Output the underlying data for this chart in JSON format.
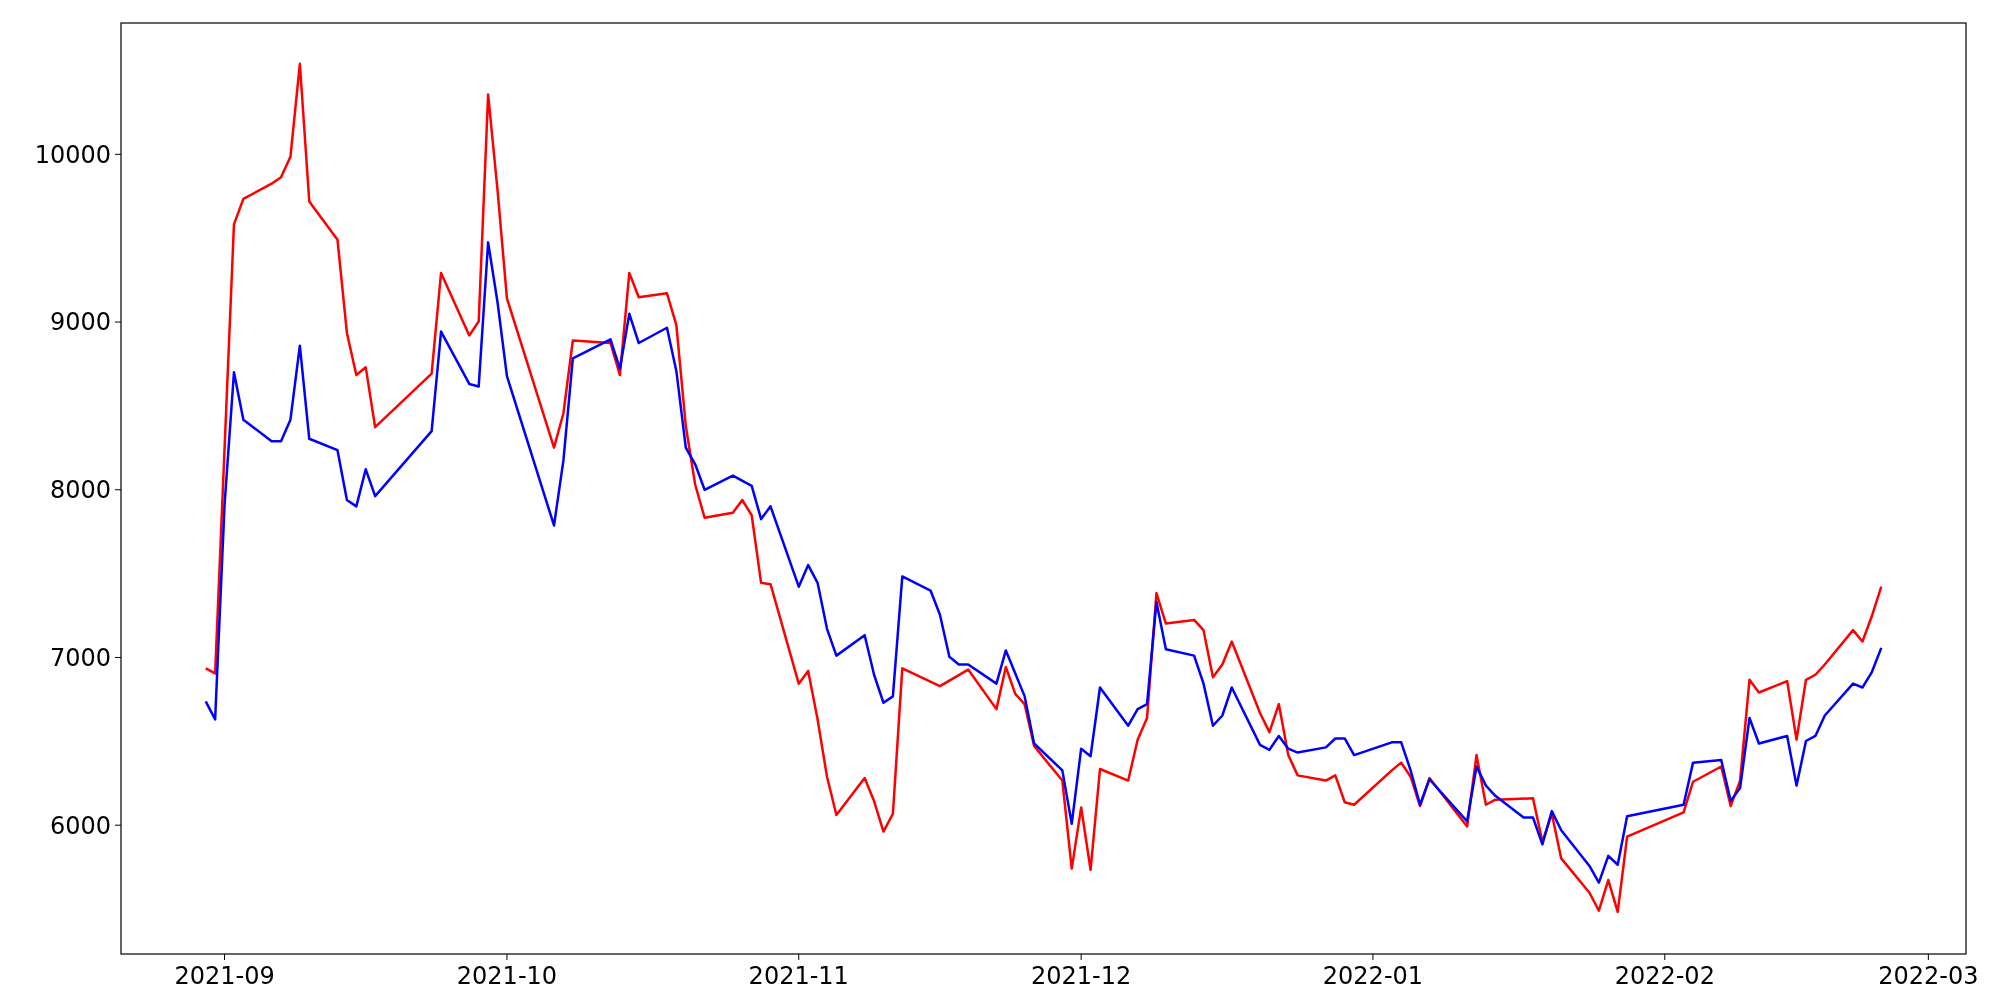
{
  "chart_data": {
    "type": "line",
    "xlim": [
      "2021-08-21",
      "2022-03-05"
    ],
    "ylim": [
      5232,
      10783
    ],
    "xticks": [
      "2021-09",
      "2021-10",
      "2021-11",
      "2021-12",
      "2022-01",
      "2022-02",
      "2022-03"
    ],
    "yticks": [
      6000,
      7000,
      8000,
      9000,
      10000
    ],
    "grid": false,
    "marker": "none",
    "line_style": "solid",
    "series": [
      {
        "color": "#ff0000",
        "x": [
          "2021-08-30",
          "2021-08-31",
          "2021-09-02",
          "2021-09-03",
          "2021-09-06",
          "2021-09-07",
          "2021-09-08",
          "2021-09-09",
          "2021-09-10",
          "2021-09-13",
          "2021-09-14",
          "2021-09-15",
          "2021-09-16",
          "2021-09-17",
          "2021-09-23",
          "2021-09-24",
          "2021-09-27",
          "2021-09-28",
          "2021-09-29",
          "2021-09-30",
          "2021-10-01",
          "2021-10-06",
          "2021-10-07",
          "2021-10-08",
          "2021-10-12",
          "2021-10-13",
          "2021-10-14",
          "2021-10-15",
          "2021-10-18",
          "2021-10-19",
          "2021-10-20",
          "2021-10-21",
          "2021-10-22",
          "2021-10-25",
          "2021-10-26",
          "2021-10-27",
          "2021-10-28",
          "2021-10-29",
          "2021-11-01",
          "2021-11-02",
          "2021-11-03",
          "2021-11-04",
          "2021-11-05",
          "2021-11-08",
          "2021-11-09",
          "2021-11-10",
          "2021-11-11",
          "2021-11-12",
          "2021-11-16",
          "2021-11-19",
          "2021-11-22",
          "2021-11-23",
          "2021-11-24",
          "2021-11-25",
          "2021-11-26",
          "2021-11-29",
          "2021-11-30",
          "2021-12-01",
          "2021-12-02",
          "2021-12-03",
          "2021-12-06",
          "2021-12-07",
          "2021-12-08",
          "2021-12-09",
          "2021-12-10",
          "2021-12-13",
          "2021-12-14",
          "2021-12-15",
          "2021-12-16",
          "2021-12-17",
          "2021-12-20",
          "2021-12-21",
          "2021-12-22",
          "2021-12-23",
          "2021-12-24",
          "2021-12-27",
          "2021-12-28",
          "2021-12-29",
          "2021-12-30",
          "2022-01-03",
          "2022-01-04",
          "2022-01-05",
          "2022-01-06",
          "2022-01-07",
          "2022-01-11",
          "2022-01-12",
          "2022-01-13",
          "2022-01-14",
          "2022-01-18",
          "2022-01-19",
          "2022-01-20",
          "2022-01-21",
          "2022-01-24",
          "2022-01-25",
          "2022-01-26",
          "2022-01-27",
          "2022-01-28",
          "2022-02-03",
          "2022-02-04",
          "2022-02-07",
          "2022-02-08",
          "2022-02-09",
          "2022-02-10",
          "2022-02-11",
          "2022-02-14",
          "2022-02-15",
          "2022-02-16",
          "2022-02-17",
          "2022-02-18",
          "2022-02-21",
          "2022-02-22",
          "2022-02-23",
          "2022-02-24"
        ],
        "values": [
          6935,
          6905,
          9582,
          9734,
          9825,
          9863,
          9985,
          10540,
          9719,
          9490,
          8935,
          8684,
          8730,
          8373,
          8692,
          9293,
          8920,
          9004,
          10357,
          9787,
          9141,
          8251,
          8456,
          8890,
          8875,
          8684,
          9293,
          9148,
          9171,
          8981,
          8380,
          8030,
          7833,
          7863,
          7939,
          7848,
          7445,
          7437,
          6844,
          6920,
          6631,
          6289,
          6061,
          6281,
          6144,
          5962,
          6068,
          6935,
          6829,
          6928,
          6692,
          6943,
          6783,
          6720,
          6472,
          6266,
          5741,
          6106,
          5734,
          6335,
          6266,
          6510,
          6639,
          7384,
          7202,
          7224,
          7163,
          6882,
          6958,
          7095,
          6669,
          6555,
          6722,
          6418,
          6297,
          6266,
          6297,
          6137,
          6122,
          6327,
          6373,
          6289,
          6114,
          6281,
          5992,
          6418,
          6122,
          6152,
          6160,
          5901,
          6068,
          5802,
          5597,
          5490,
          5673,
          5483,
          5932,
          6076,
          6259,
          6350,
          6114,
          6266,
          6867,
          6791,
          6859,
          6510,
          6867,
          6897,
          6958,
          7163,
          7095,
          7247,
          7422
        ]
      },
      {
        "color": "#0000ff",
        "x": [
          "2021-08-30",
          "2021-08-31",
          "2021-09-01",
          "2021-09-02",
          "2021-09-03",
          "2021-09-06",
          "2021-09-07",
          "2021-09-08",
          "2021-09-09",
          "2021-09-10",
          "2021-09-13",
          "2021-09-14",
          "2021-09-15",
          "2021-09-16",
          "2021-09-17",
          "2021-09-23",
          "2021-09-24",
          "2021-09-27",
          "2021-09-28",
          "2021-09-29",
          "2021-09-30",
          "2021-10-01",
          "2021-10-06",
          "2021-10-07",
          "2021-10-08",
          "2021-10-12",
          "2021-10-13",
          "2021-10-14",
          "2021-10-15",
          "2021-10-18",
          "2021-10-19",
          "2021-10-20",
          "2021-10-21",
          "2021-10-22",
          "2021-10-25",
          "2021-10-27",
          "2021-10-28",
          "2021-10-29",
          "2021-11-01",
          "2021-11-02",
          "2021-11-03",
          "2021-11-04",
          "2021-11-05",
          "2021-11-08",
          "2021-11-09",
          "2021-11-10",
          "2021-11-11",
          "2021-11-12",
          "2021-11-15",
          "2021-11-16",
          "2021-11-17",
          "2021-11-18",
          "2021-11-19",
          "2021-11-22",
          "2021-11-23",
          "2021-11-25",
          "2021-11-26",
          "2021-11-29",
          "2021-11-30",
          "2021-12-01",
          "2021-12-02",
          "2021-12-03",
          "2021-12-06",
          "2021-12-07",
          "2021-12-08",
          "2021-12-09",
          "2021-12-10",
          "2021-12-13",
          "2021-12-14",
          "2021-12-15",
          "2021-12-16",
          "2021-12-17",
          "2021-12-20",
          "2021-12-21",
          "2021-12-22",
          "2021-12-23",
          "2021-12-24",
          "2021-12-27",
          "2021-12-28",
          "2021-12-29",
          "2021-12-30",
          "2022-01-03",
          "2022-01-04",
          "2022-01-05",
          "2022-01-06",
          "2022-01-07",
          "2022-01-11",
          "2022-01-12",
          "2022-01-13",
          "2022-01-14",
          "2022-01-17",
          "2022-01-18",
          "2022-01-19",
          "2022-01-20",
          "2022-01-21",
          "2022-01-24",
          "2022-01-25",
          "2022-01-26",
          "2022-01-27",
          "2022-01-28",
          "2022-02-03",
          "2022-02-04",
          "2022-02-07",
          "2022-02-08",
          "2022-02-09",
          "2022-02-10",
          "2022-02-11",
          "2022-02-14",
          "2022-02-15",
          "2022-02-16",
          "2022-02-17",
          "2022-02-18",
          "2022-02-21",
          "2022-02-22",
          "2022-02-23",
          "2022-02-24"
        ],
        "values": [
          6738,
          6631,
          7909,
          8700,
          8418,
          8289,
          8289,
          8418,
          8859,
          8304,
          8236,
          7939,
          7901,
          8122,
          7962,
          8350,
          8943,
          8631,
          8616,
          9475,
          9118,
          8677,
          7787,
          8175,
          8783,
          8897,
          8722,
          9049,
          8875,
          8966,
          8707,
          8251,
          8152,
          8000,
          8084,
          8023,
          7825,
          7901,
          7422,
          7551,
          7445,
          7171,
          7011,
          7133,
          6897,
          6730,
          6768,
          7483,
          7399,
          7255,
          7004,
          6958,
          6958,
          6844,
          7042,
          6768,
          6487,
          6327,
          6008,
          6456,
          6411,
          6821,
          6593,
          6692,
          6722,
          7331,
          7049,
          7011,
          6844,
          6593,
          6654,
          6821,
          6479,
          6449,
          6532,
          6456,
          6433,
          6464,
          6517,
          6517,
          6418,
          6494,
          6494,
          6327,
          6122,
          6274,
          6023,
          6350,
          6236,
          6175,
          6046,
          6046,
          5886,
          6084,
          5970,
          5757,
          5658,
          5817,
          5764,
          6053,
          6122,
          6373,
          6388,
          6145,
          6221,
          6639,
          6487,
          6532,
          6236,
          6502,
          6532,
          6654,
          6844,
          6821,
          6913,
          7057
        ]
      }
    ]
  }
}
